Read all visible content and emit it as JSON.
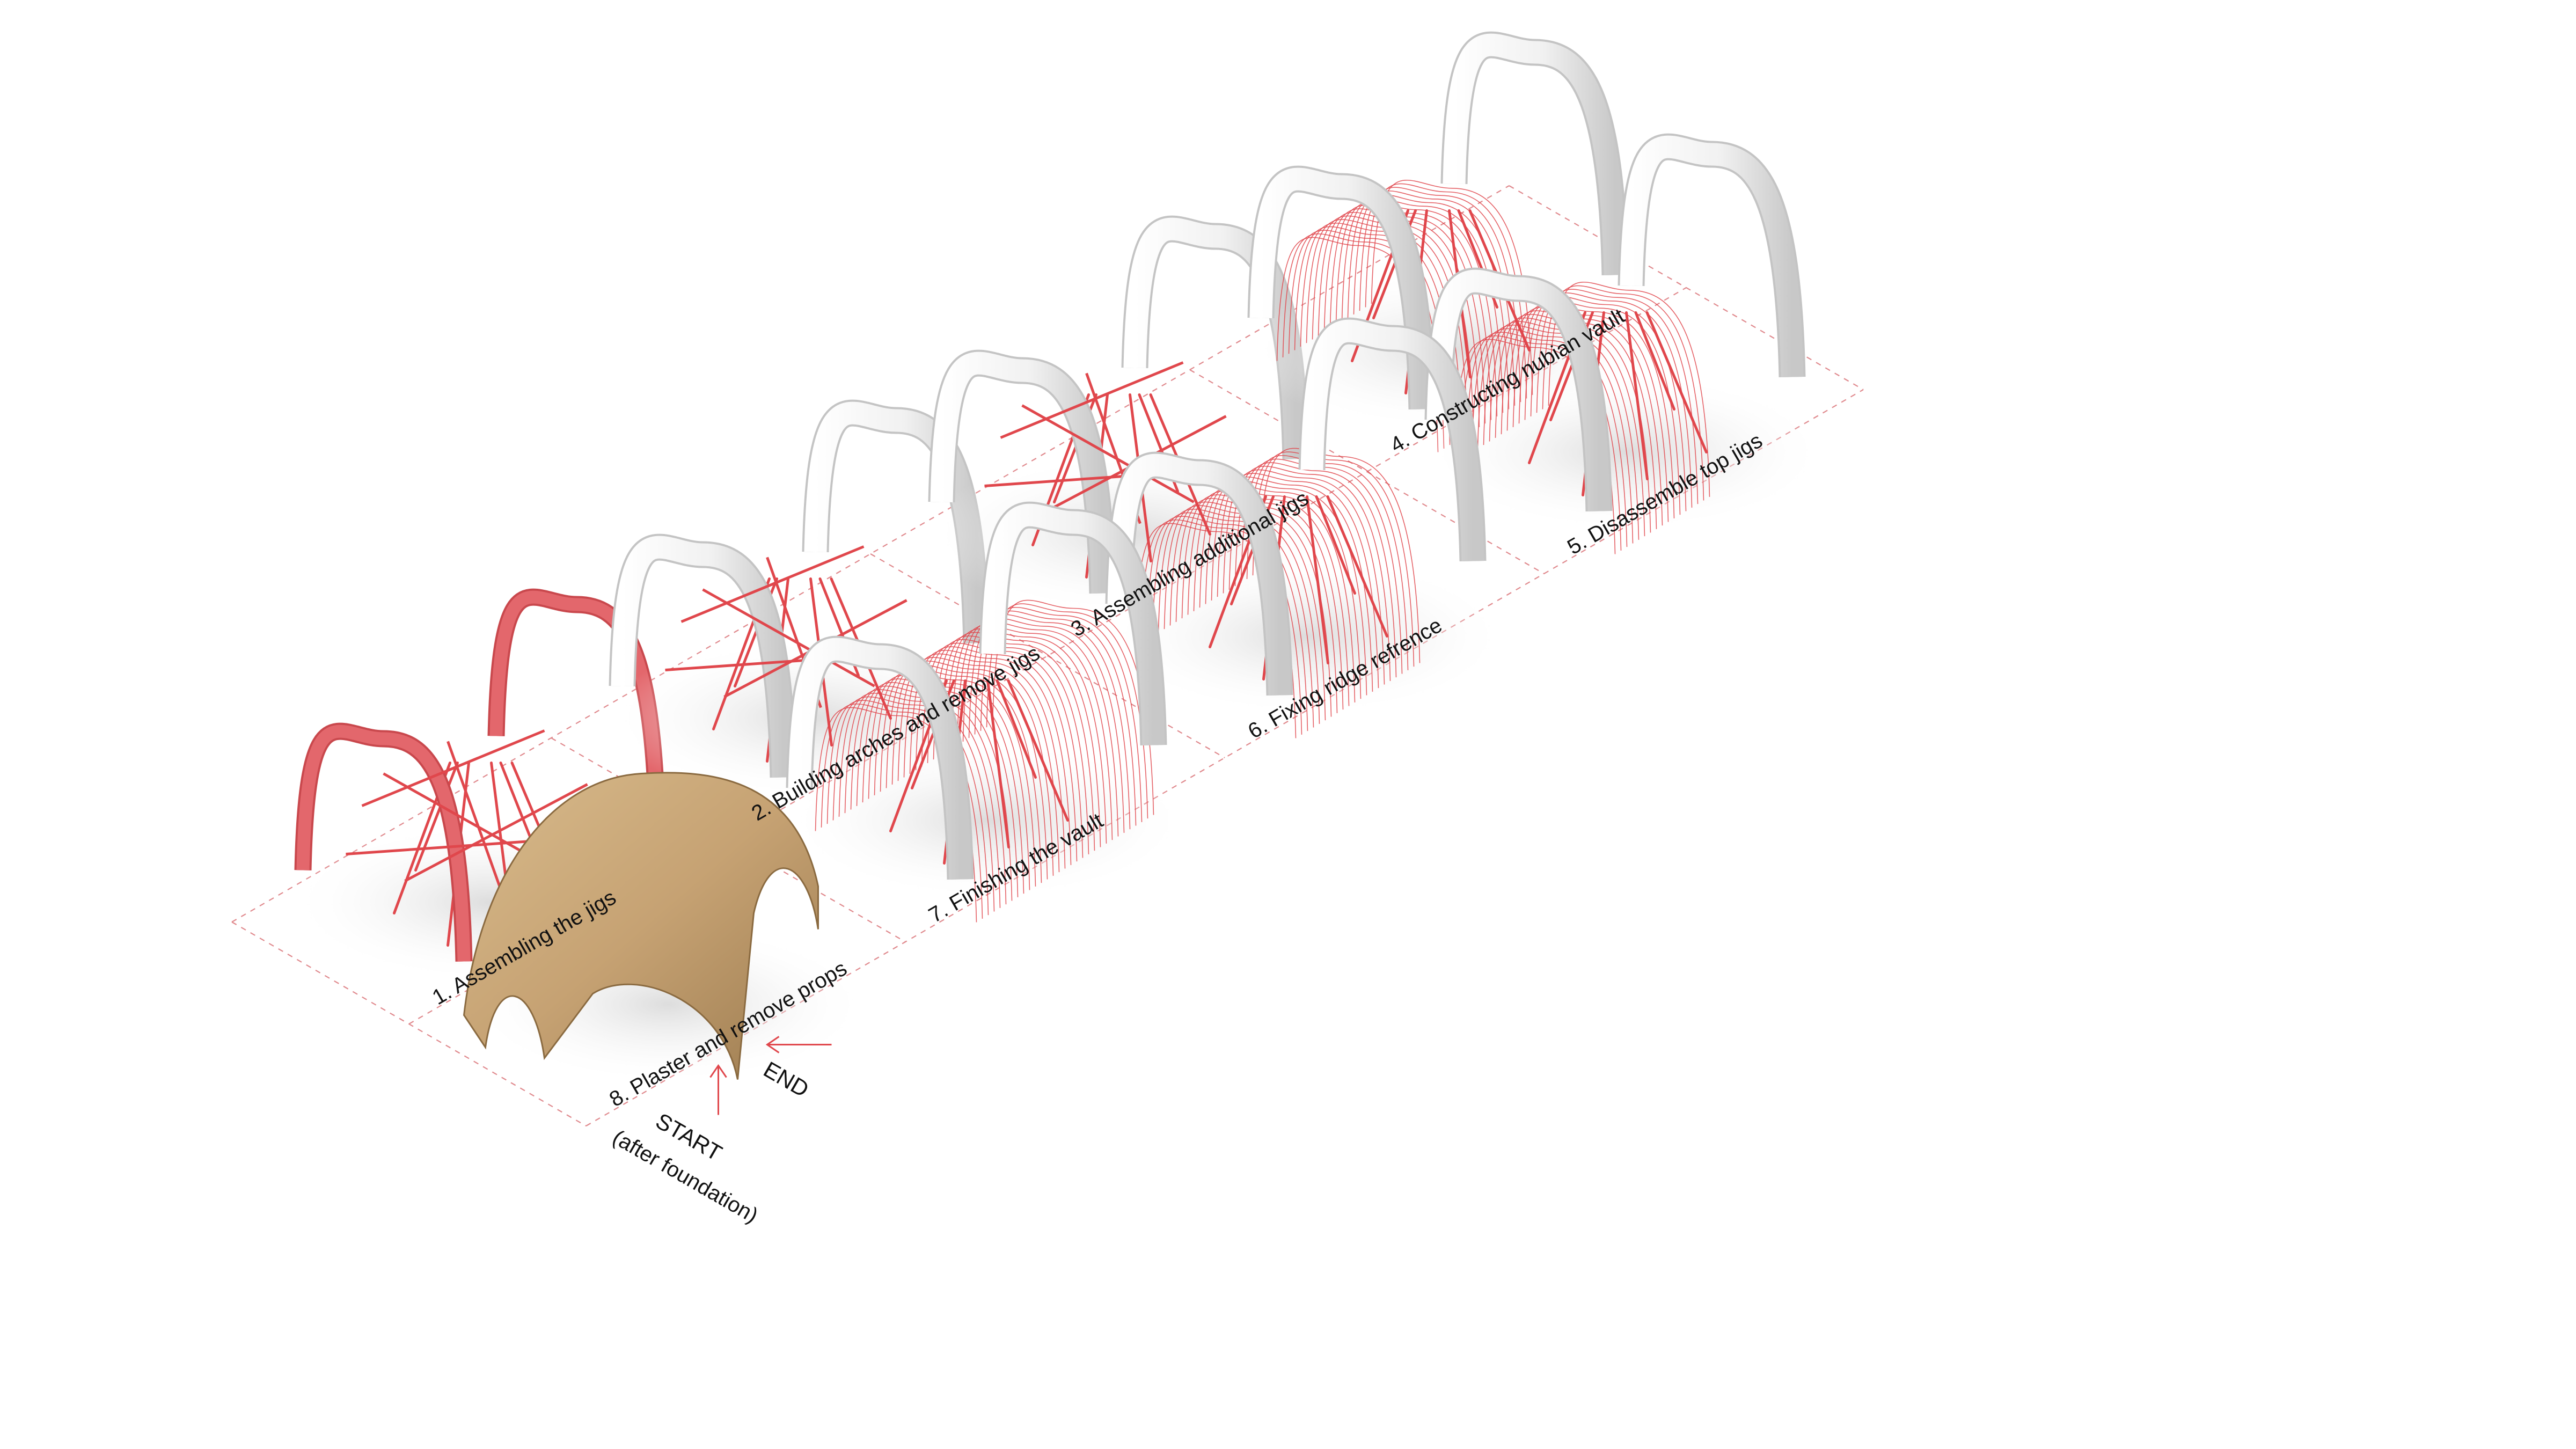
{
  "steps": [
    {
      "number": 1,
      "label": "1. Assembling the jigs",
      "stage": "jigs"
    },
    {
      "number": 2,
      "label": "2. Building arches and remove jigs",
      "stage": "arches"
    },
    {
      "number": 3,
      "label": "3. Assembling additional jigs",
      "stage": "additional-jigs"
    },
    {
      "number": 4,
      "label": "4. Constructing nubian vault",
      "stage": "vault-partial"
    },
    {
      "number": 5,
      "label": "5. Disassemble top jigs",
      "stage": "vault-partial"
    },
    {
      "number": 6,
      "label": "6. Fixing ridge refrence",
      "stage": "vault-ridge"
    },
    {
      "number": 7,
      "label": "7. Finishing the vault",
      "stage": "vault-full"
    },
    {
      "number": 8,
      "label": "8. Plaster and remove props",
      "stage": "plaster"
    }
  ],
  "start_marker": {
    "line1": "START",
    "line2": "(after foundation)"
  },
  "end_marker": {
    "label": "END"
  },
  "colors": {
    "accent_red": "#e0474c",
    "jig_red": "#e3676c",
    "arch_white": "#f4f4f4",
    "arch_shade": "#cfcfcf",
    "plaster": "#c9a878",
    "grid_line": "#e08a8e"
  }
}
